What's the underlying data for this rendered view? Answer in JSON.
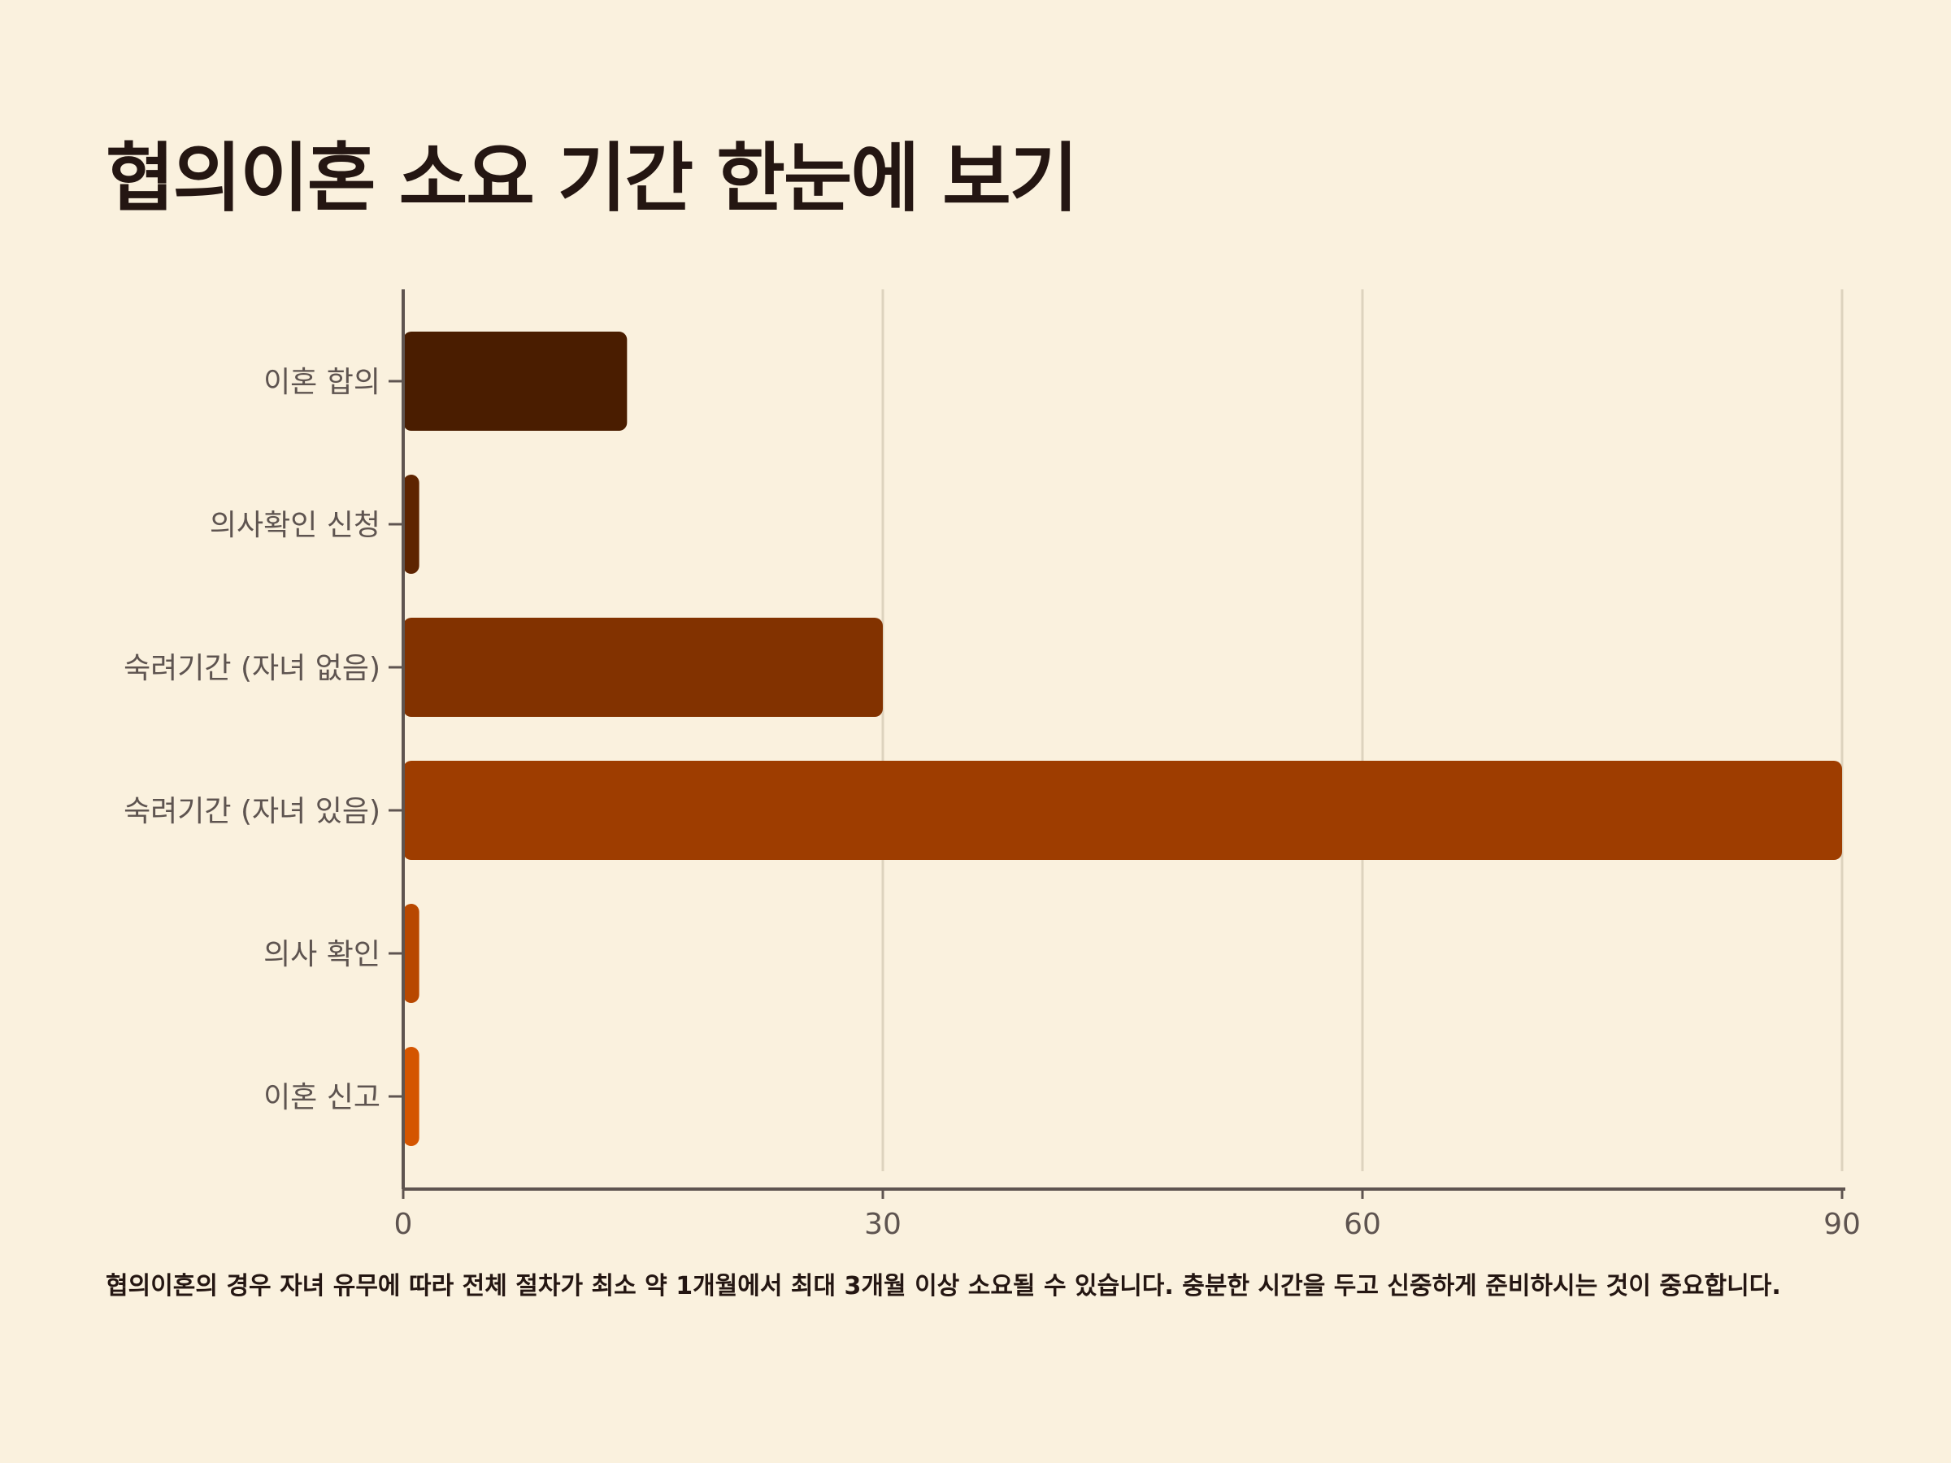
{
  "chart_data": {
    "type": "bar",
    "orientation": "horizontal",
    "title": "협의이혼 소요 기간 한눈에 보기",
    "categories": [
      "이혼 합의",
      "의사확인 신청",
      "숙려기간 (자녀 없음)",
      "숙려기간 (자녀 있음)",
      "의사 확인",
      "이혼 신고"
    ],
    "values": [
      14,
      1,
      30,
      90,
      1,
      1
    ],
    "xlim": [
      0,
      90
    ],
    "xticks": [
      "0",
      "30",
      "60",
      "90"
    ],
    "xlabel": "",
    "ylabel": "",
    "grid": true,
    "colors": [
      "#4A1D00",
      "#5E2400",
      "#823200",
      "#9E3D00",
      "#B84800",
      "#D45500"
    ],
    "footnote": "협의이혼의 경우 자녀 유무에 따라 전체 절차가 최소 약 1개월에서 최대 3개월 이상 소요될 수 있습니다. 충분한 시간을 두고 신중하게 준비하시는 것이 중요합니다."
  }
}
